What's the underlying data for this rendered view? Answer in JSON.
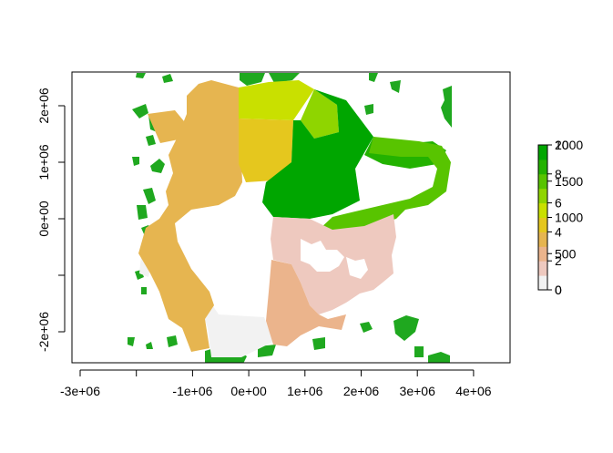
{
  "chart_data": {
    "type": "heatmap",
    "title": "",
    "xlabel": "",
    "ylabel": "",
    "x_axis": {
      "ticks": [
        -3000000,
        -2000000,
        -1000000,
        0,
        1000000,
        2000000,
        3000000,
        4000000
      ],
      "labels": [
        "-3e+06",
        "",
        "-1e+06",
        "0e+00",
        "1e+06",
        "2e+06",
        "3e+06",
        "4e+06"
      ],
      "range": [
        -3000000,
        4700000
      ]
    },
    "y_axis": {
      "ticks": [
        -2000000,
        -1000000,
        0,
        1000000,
        2000000
      ],
      "labels": [
        "-2e+06",
        "",
        "0e+00",
        "1e+06",
        "2e+06"
      ],
      "range": [
        -2600000,
        2600000
      ]
    },
    "legend": {
      "position": "right",
      "scale_a": {
        "values": [
          0,
          2,
          4,
          6,
          8,
          10
        ],
        "labels": [
          "0",
          "2",
          "4",
          "6",
          "8",
          "10"
        ]
      },
      "scale_b": {
        "values": [
          0,
          500,
          1000,
          1500,
          2000
        ],
        "labels": [
          "0",
          "500",
          "1000",
          "1500",
          "2000"
        ]
      },
      "colors": [
        "#f2f2f2",
        "#eec9bf",
        "#ebb48c",
        "#e6b550",
        "#e5c71e",
        "#c9e000",
        "#8fd500",
        "#58c400",
        "#23b200",
        "#00a600"
      ]
    },
    "colors": {
      "land_green": "#1fa81f",
      "background": "#ffffff"
    }
  }
}
